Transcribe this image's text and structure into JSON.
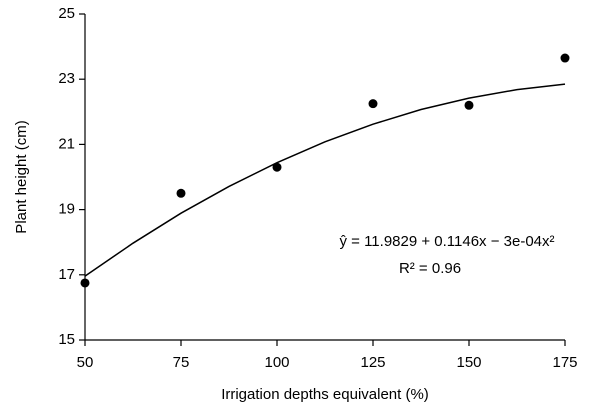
{
  "chart_data": {
    "type": "scatter",
    "x_label": "Irrigation depths equivalent (%)",
    "y_label": "Plant height (cm)",
    "series": [
      {
        "type": "scatter",
        "color": "#000000",
        "x": [
          50,
          75,
          100,
          125,
          150,
          175
        ],
        "values": [
          16.75,
          19.5,
          20.3,
          22.25,
          22.2,
          23.65
        ]
      },
      {
        "type": "line",
        "color": "#000000",
        "x": [
          50,
          62.5,
          75,
          87.5,
          100,
          112.5,
          125,
          137.5,
          150,
          162.5,
          175
        ],
        "values": [
          16.96,
          17.97,
          18.89,
          19.71,
          20.44,
          21.08,
          21.62,
          22.07,
          22.42,
          22.68,
          22.85
        ]
      }
    ],
    "annotations": [
      "ŷ = 11.9829 + 0.1146x − 3e-04x²",
      "R² = 0.96"
    ],
    "xlim": [
      50,
      175
    ],
    "ylim": [
      15,
      25
    ],
    "xticks": [
      50,
      75,
      100,
      125,
      150,
      175
    ],
    "yticks": [
      15,
      17,
      19,
      21,
      23,
      25
    ]
  }
}
